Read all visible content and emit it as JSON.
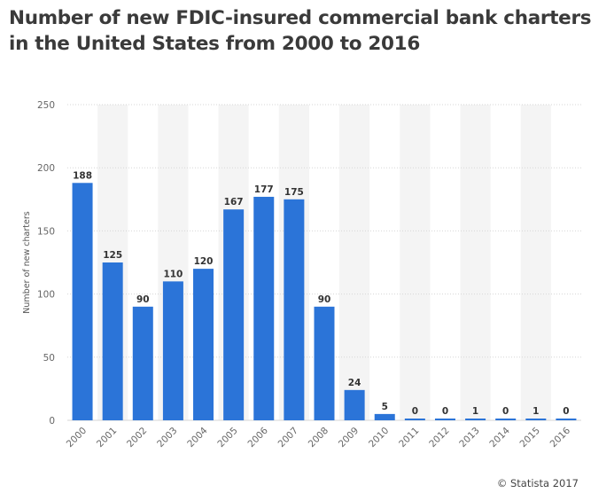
{
  "header": {
    "title_line1": "Number of new FDIC-insured commercial bank charters",
    "title_line2": "in the United States from 2000 to 2016"
  },
  "footer": {
    "copyright": "© Statista 2017"
  },
  "chart_data": {
    "type": "bar",
    "title": "Number of new FDIC-insured commercial bank charters in the United States from 2000 to 2016",
    "xlabel": "",
    "ylabel": "Number of new charters",
    "ylim": [
      0,
      250
    ],
    "yticks": [
      0,
      50,
      100,
      150,
      200,
      250
    ],
    "grid": true,
    "categories": [
      "2000",
      "2001",
      "2002",
      "2003",
      "2004",
      "2005",
      "2006",
      "2007",
      "2008",
      "2009",
      "2010",
      "2011",
      "2012",
      "2013",
      "2014",
      "2015",
      "2016"
    ],
    "values": [
      188,
      125,
      90,
      110,
      120,
      167,
      177,
      175,
      90,
      24,
      5,
      0,
      0,
      1,
      0,
      1,
      0
    ],
    "bar_color": "#2b74d8",
    "band_color": "#f4f4f4"
  }
}
